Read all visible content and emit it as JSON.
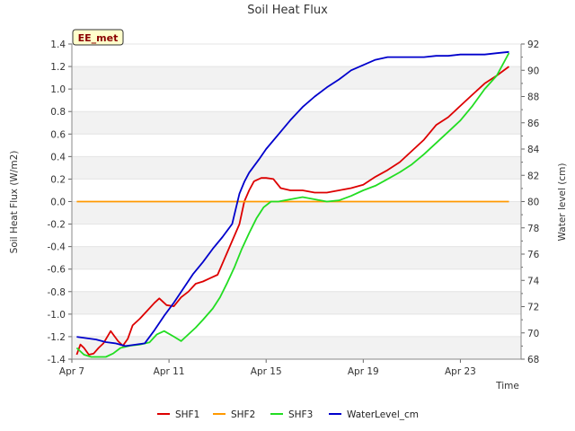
{
  "chart_data": {
    "type": "line",
    "title": "Soil Heat Flux",
    "badge": "EE_met",
    "xlabel": "Time",
    "ylabel": "Soil Heat Flux (W/m2)",
    "y2label": "Water level (cm)",
    "xlim": [
      7,
      25.5
    ],
    "ylim": [
      -1.4,
      1.4
    ],
    "y2lim": [
      68,
      92
    ],
    "x_ticks": [
      {
        "value": 7,
        "label": "Apr 7"
      },
      {
        "value": 11,
        "label": "Apr 11"
      },
      {
        "value": 15,
        "label": "Apr 15"
      },
      {
        "value": 19,
        "label": "Apr 19"
      },
      {
        "value": 23,
        "label": "Apr 23"
      }
    ],
    "y_ticks": [
      "-1.4",
      "-1.2",
      "-1.0",
      "-0.8",
      "-0.6",
      "-0.4",
      "-0.2",
      "0.0",
      "0.2",
      "0.4",
      "0.6",
      "0.8",
      "1.0",
      "1.2",
      "1.4"
    ],
    "y2_ticks": [
      "68",
      "70",
      "72",
      "74",
      "76",
      "78",
      "80",
      "82",
      "84",
      "86",
      "88",
      "90",
      "92"
    ],
    "grid": "horizontal-bands",
    "legend_position": "bottom",
    "series": [
      {
        "name": "SHF1",
        "color": "#dd0000",
        "axis": "left",
        "x": [
          7.2,
          7.35,
          7.5,
          7.7,
          7.9,
          8.1,
          8.3,
          8.6,
          8.9,
          9.1,
          9.3,
          9.5,
          9.8,
          10.1,
          10.4,
          10.6,
          10.9,
          11.2,
          11.5,
          11.8,
          12.1,
          12.4,
          12.7,
          13.0,
          13.3,
          13.6,
          13.9,
          14.1,
          14.3,
          14.5,
          14.8,
          15.0,
          15.3,
          15.6,
          16.0,
          16.5,
          17.0,
          17.5,
          18.0,
          18.5,
          19.0,
          19.5,
          20.0,
          20.5,
          21.0,
          21.5,
          22.0,
          22.5,
          23.0,
          23.5,
          24.0,
          24.5,
          25.0
        ],
        "y": [
          -1.36,
          -1.27,
          -1.3,
          -1.36,
          -1.35,
          -1.3,
          -1.26,
          -1.15,
          -1.24,
          -1.28,
          -1.22,
          -1.1,
          -1.04,
          -0.97,
          -0.9,
          -0.86,
          -0.92,
          -0.93,
          -0.85,
          -0.8,
          -0.73,
          -0.71,
          -0.68,
          -0.65,
          -0.5,
          -0.35,
          -0.2,
          0.0,
          0.1,
          0.18,
          0.21,
          0.21,
          0.2,
          0.12,
          0.1,
          0.1,
          0.08,
          0.08,
          0.1,
          0.12,
          0.15,
          0.22,
          0.28,
          0.35,
          0.45,
          0.55,
          0.68,
          0.75,
          0.85,
          0.95,
          1.05,
          1.12,
          1.2
        ]
      },
      {
        "name": "SHF2",
        "color": "#ff9900",
        "axis": "left",
        "x": [
          7.2,
          25.0
        ],
        "y": [
          0.0,
          0.0
        ]
      },
      {
        "name": "SHF3",
        "color": "#22dd22",
        "axis": "left",
        "x": [
          7.2,
          7.5,
          7.8,
          8.1,
          8.4,
          8.7,
          9.0,
          9.4,
          9.8,
          10.2,
          10.5,
          10.8,
          11.2,
          11.5,
          11.8,
          12.1,
          12.4,
          12.8,
          13.1,
          13.4,
          13.7,
          14.0,
          14.3,
          14.6,
          14.9,
          15.2,
          15.5,
          16.0,
          16.5,
          17.0,
          17.5,
          18.0,
          18.5,
          19.0,
          19.5,
          20.0,
          20.5,
          21.0,
          21.5,
          22.0,
          22.5,
          23.0,
          23.5,
          24.0,
          24.5,
          25.0
        ],
        "y": [
          -1.3,
          -1.36,
          -1.38,
          -1.38,
          -1.38,
          -1.35,
          -1.3,
          -1.28,
          -1.27,
          -1.25,
          -1.18,
          -1.15,
          -1.2,
          -1.24,
          -1.18,
          -1.12,
          -1.05,
          -0.95,
          -0.85,
          -0.72,
          -0.58,
          -0.42,
          -0.28,
          -0.15,
          -0.05,
          0.0,
          0.0,
          0.02,
          0.04,
          0.02,
          0.0,
          0.01,
          0.05,
          0.1,
          0.14,
          0.2,
          0.26,
          0.33,
          0.42,
          0.52,
          0.62,
          0.72,
          0.85,
          1.0,
          1.12,
          1.32
        ]
      },
      {
        "name": "WaterLevel_cm",
        "color": "#0000cc",
        "axis": "right",
        "x": [
          7.2,
          7.6,
          8.0,
          8.4,
          8.8,
          9.2,
          9.6,
          10.0,
          10.4,
          10.8,
          11.2,
          11.6,
          12.0,
          12.4,
          12.8,
          13.2,
          13.6,
          13.9,
          14.1,
          14.3,
          14.7,
          15.0,
          15.5,
          16.0,
          16.5,
          17.0,
          17.5,
          18.0,
          18.5,
          19.0,
          19.5,
          20.0,
          20.5,
          21.0,
          21.5,
          22.0,
          22.5,
          23.0,
          23.5,
          24.0,
          24.5,
          25.0
        ],
        "x_note": "",
        "y": [
          69.7,
          69.6,
          69.5,
          69.3,
          69.2,
          69.0,
          69.1,
          69.2,
          70.2,
          71.3,
          72.3,
          73.4,
          74.5,
          75.4,
          76.4,
          77.3,
          78.3,
          80.6,
          81.5,
          82.2,
          83.2,
          84.0,
          85.1,
          86.2,
          87.2,
          88.0,
          88.7,
          89.3,
          90.0,
          90.4,
          90.8,
          91.0,
          91.0,
          91.0,
          91.0,
          91.1,
          91.1,
          91.2,
          91.2,
          91.2,
          91.3,
          91.4
        ]
      }
    ]
  }
}
